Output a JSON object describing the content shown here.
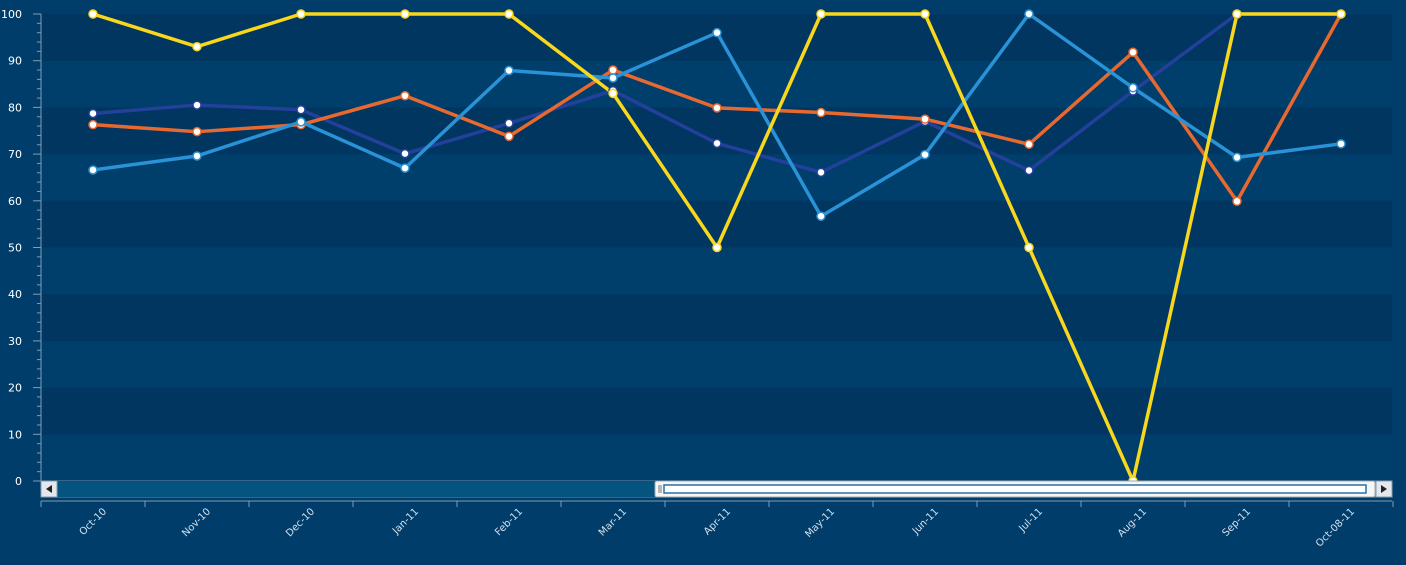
{
  "chart_data": {
    "type": "line",
    "categories": [
      "Oct-10",
      "Nov-10",
      "Dec-10",
      "Jan-11",
      "Feb-11",
      "Mar-11",
      "Apr-11",
      "May-11",
      "Jun-11",
      "Jul-11",
      "Aug-11",
      "Sep-11",
      "Oct-08-11"
    ],
    "ylim": [
      0,
      100
    ],
    "yticks": [
      0,
      10,
      20,
      30,
      40,
      50,
      60,
      70,
      80,
      90,
      100
    ],
    "grid": "horizontal-bands",
    "legend": "none",
    "series": [
      {
        "color": "#23409a",
        "values": [
          78.7,
          80.5,
          79.5,
          70.1,
          76.6,
          83.6,
          72.3,
          66.1,
          77.0,
          66.5,
          83.5,
          100,
          100
        ]
      },
      {
        "color": "#e8692f",
        "values": [
          76.3,
          74.8,
          76.3,
          82.5,
          73.8,
          88.0,
          79.9,
          78.9,
          77.5,
          72.1,
          91.8,
          59.9,
          100
        ]
      },
      {
        "color": "#2a92d6",
        "values": [
          66.6,
          69.6,
          76.9,
          67.0,
          87.9,
          86.3,
          96.0,
          56.7,
          69.9,
          100,
          84.2,
          69.3,
          72.2
        ]
      },
      {
        "color": "#f9d71c",
        "values": [
          100,
          93.0,
          100,
          100,
          100,
          83.0,
          50.0,
          100,
          100,
          50.0,
          0,
          100,
          100
        ]
      }
    ]
  }
}
